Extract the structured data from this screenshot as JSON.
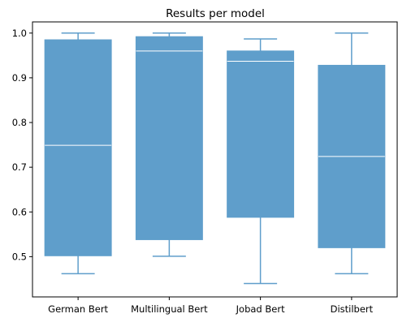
{
  "chart_data": {
    "type": "boxplot",
    "title": "Results per model",
    "xlabel": "",
    "ylabel": "",
    "ylim": [
      0.41,
      1.025
    ],
    "yticks": [
      0.5,
      0.6,
      0.7,
      0.8,
      0.9,
      1.0
    ],
    "ytick_labels": [
      "0.5",
      "0.6",
      "0.7",
      "0.8",
      "0.9",
      "1.0"
    ],
    "grid": false,
    "box_color": "#5f9ecb",
    "median_color": "#ffffff",
    "categories": [
      "German Bert",
      "Multilingual Bert",
      "Jobad Bert",
      "Distilbert"
    ],
    "boxes": [
      {
        "whisker_low": 0.462,
        "q1": 0.502,
        "median": 0.749,
        "q3": 0.985,
        "whisker_high": 1.0
      },
      {
        "whisker_low": 0.501,
        "q1": 0.538,
        "median": 0.96,
        "q3": 0.992,
        "whisker_high": 1.0
      },
      {
        "whisker_low": 0.44,
        "q1": 0.588,
        "median": 0.937,
        "q3": 0.96,
        "whisker_high": 0.987
      },
      {
        "whisker_low": 0.462,
        "q1": 0.52,
        "median": 0.724,
        "q3": 0.928,
        "whisker_high": 1.0
      }
    ]
  }
}
